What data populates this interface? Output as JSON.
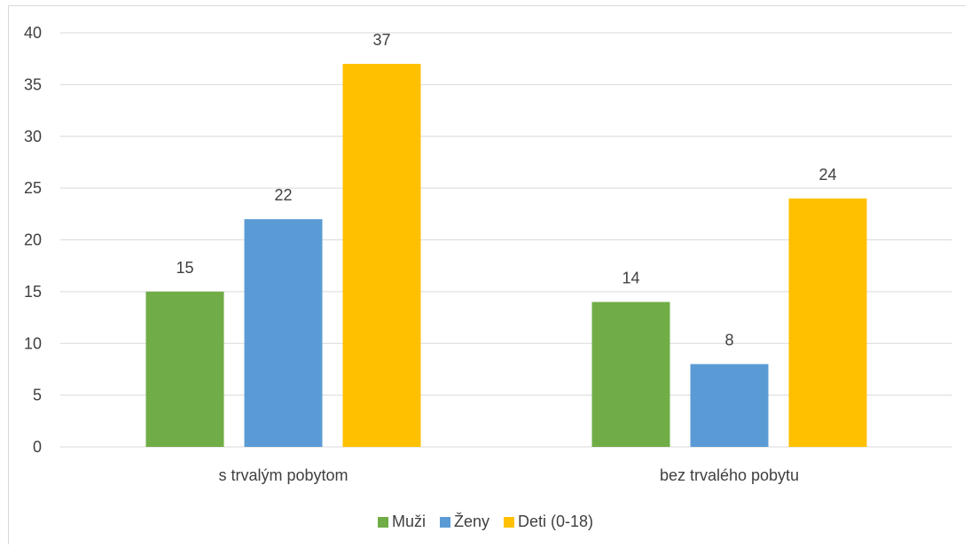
{
  "chart_data": {
    "type": "bar",
    "title": "",
    "xlabel": "",
    "ylabel": "",
    "categories": [
      "s trvalým pobytom",
      "bez trvalého pobytu"
    ],
    "series": [
      {
        "name": "Muži",
        "values": [
          15,
          14
        ],
        "color": "#70ad47"
      },
      {
        "name": "Ženy",
        "values": [
          22,
          8
        ],
        "color": "#5b9bd5"
      },
      {
        "name": "Deti (0-18)",
        "values": [
          37,
          24
        ],
        "color": "#ffc000"
      }
    ],
    "ylim": [
      0,
      40
    ],
    "yticks": [
      "0",
      "5",
      "10",
      "15",
      "20",
      "25",
      "30",
      "35",
      "40"
    ],
    "grid": true,
    "legend": "bottom-center",
    "data_labels": true
  }
}
